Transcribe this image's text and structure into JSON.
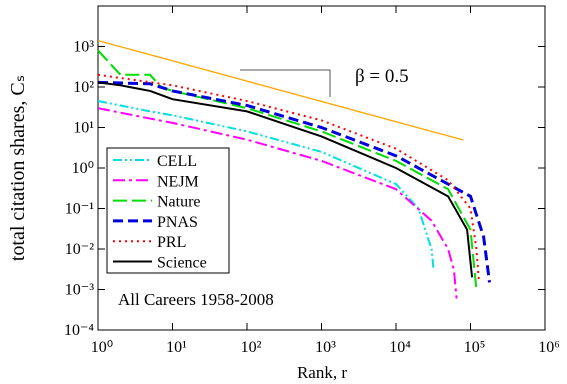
{
  "chart_data": {
    "type": "line",
    "x_label": "Rank, r",
    "y_label": "total citation shares, Cₛ",
    "annotations": [
      "β = 0.5",
      "All Careers 1958-2008"
    ],
    "xscale": "log",
    "yscale": "log",
    "xlim": [
      1,
      1000000
    ],
    "ylim": [
      0.0001,
      10000
    ],
    "xticks": [
      {
        "value": 1,
        "label": "10⁰"
      },
      {
        "value": 10,
        "label": "10¹"
      },
      {
        "value": 100,
        "label": "10²"
      },
      {
        "value": 1000,
        "label": "10³"
      },
      {
        "value": 10000,
        "label": "10⁴"
      },
      {
        "value": 100000,
        "label": "10⁵"
      },
      {
        "value": 1000000,
        "label": "10⁶"
      }
    ],
    "yticks": [
      {
        "value": 0.0001,
        "label": "10⁻⁴"
      },
      {
        "value": 0.001,
        "label": "10⁻³"
      },
      {
        "value": 0.01,
        "label": "10⁻²"
      },
      {
        "value": 0.1,
        "label": "10⁻¹"
      },
      {
        "value": 1,
        "label": "10⁰"
      },
      {
        "value": 10,
        "label": "10¹"
      },
      {
        "value": 100,
        "label": "10²"
      },
      {
        "value": 1000,
        "label": "10³"
      }
    ],
    "legend": "lower-left",
    "reference_line": {
      "x": [
        1,
        80000
      ],
      "values": [
        1400,
        4.9
      ],
      "color": "#ffa500"
    },
    "series": [
      {
        "name": "CELL",
        "color": "#00e0e0",
        "dash": "9,3,2,3,2,3",
        "x": [
          1,
          2,
          5,
          10,
          100,
          1000,
          10000,
          20000,
          30000,
          32000
        ],
        "values": [
          45,
          35,
          25,
          20,
          8,
          2.5,
          0.4,
          0.1,
          0.01,
          0.003
        ]
      },
      {
        "name": "NEJM",
        "color": "#ff00ff",
        "dash": "12,4,3,4",
        "x": [
          1,
          3,
          10,
          100,
          1000,
          10000,
          30000,
          50000,
          60000,
          65000
        ],
        "values": [
          30,
          20,
          13,
          5,
          1.5,
          0.3,
          0.05,
          0.01,
          0.003,
          0.0006
        ]
      },
      {
        "name": "Nature",
        "color": "#00dd00",
        "dash": "14,5",
        "x": [
          1,
          2,
          5,
          7,
          10,
          100,
          1000,
          10000,
          50000,
          100000,
          120000
        ],
        "values": [
          800,
          200,
          200,
          100,
          80,
          30,
          8,
          1.5,
          0.3,
          0.03,
          0.001
        ]
      },
      {
        "name": "PNAS",
        "color": "#0000dd",
        "dash": "10,5",
        "x": [
          1,
          5,
          10,
          100,
          1000,
          10000,
          100000,
          150000,
          180000
        ],
        "values": [
          130,
          120,
          80,
          35,
          10,
          2,
          0.2,
          0.02,
          0.0015
        ]
      },
      {
        "name": "PRL",
        "color": "#ff0000",
        "dash": "2,4",
        "x": [
          1,
          10,
          100,
          1000,
          10000,
          50000,
          100000,
          120000,
          130000
        ],
        "values": [
          200,
          110,
          45,
          15,
          3,
          0.5,
          0.1,
          0.01,
          0.0015
        ]
      },
      {
        "name": "Science",
        "color": "#000000",
        "dash": "none",
        "x": [
          1,
          2,
          5,
          10,
          100,
          1000,
          10000,
          50000,
          90000,
          105000
        ],
        "values": [
          130,
          110,
          80,
          50,
          25,
          6,
          1,
          0.2,
          0.03,
          0.002
        ]
      }
    ]
  }
}
